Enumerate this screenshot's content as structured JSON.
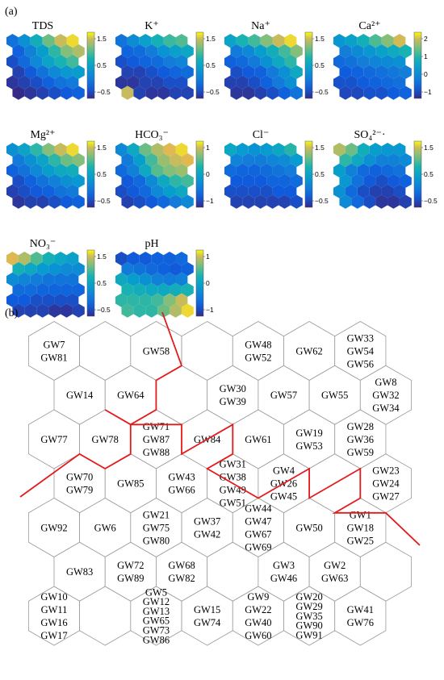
{
  "panel_a": {
    "label": "(a)",
    "maps": [
      {
        "title": "TDS",
        "ticks": [
          "1.5",
          "0.5",
          "−0.5"
        ],
        "field": [
          [
            -0.2,
            0.2,
            0.7,
            1.2,
            1.6,
            1.8
          ],
          [
            -0.4,
            0.0,
            0.4,
            0.9,
            1.3,
            1.5
          ],
          [
            -0.6,
            -0.3,
            0.1,
            0.5,
            0.8,
            1.0
          ],
          [
            -0.7,
            -0.5,
            -0.2,
            0.1,
            0.3,
            0.4
          ],
          [
            -0.8,
            -0.7,
            -0.6,
            -0.4,
            -0.2,
            -0.1
          ],
          [
            -0.9,
            -0.8,
            -0.7,
            -0.6,
            -0.5,
            -0.4
          ]
        ],
        "range": [
          -0.9,
          1.9
        ]
      },
      {
        "title": "K⁺",
        "ticks": [
          "1.5",
          "0.5",
          "−0.5"
        ],
        "field": [
          [
            -0.1,
            0.2,
            0.5,
            0.8,
            1.0,
            1.1
          ],
          [
            -0.3,
            -0.2,
            0.0,
            0.3,
            0.5,
            0.6
          ],
          [
            -0.5,
            -0.4,
            -0.3,
            -0.2,
            0.0,
            0.1
          ],
          [
            -0.6,
            -0.6,
            -0.5,
            -0.4,
            -0.3,
            -0.2
          ],
          [
            -0.7,
            -0.7,
            -0.6,
            -0.6,
            -0.5,
            -0.5
          ],
          [
            1.6,
            -0.6,
            -0.7,
            -0.7,
            -0.6,
            -0.6
          ]
        ],
        "range": [
          -0.8,
          1.9
        ]
      },
      {
        "title": "Na⁺",
        "ticks": [
          "1.5",
          "0.5",
          "−0.5"
        ],
        "field": [
          [
            0.5,
            0.8,
            1.0,
            1.3,
            1.6,
            1.8
          ],
          [
            -0.1,
            0.1,
            0.4,
            0.7,
            1.0,
            1.3
          ],
          [
            -0.4,
            -0.3,
            -0.1,
            0.2,
            0.6,
            0.9
          ],
          [
            -0.6,
            -0.5,
            -0.4,
            -0.1,
            0.2,
            0.6
          ],
          [
            -0.7,
            -0.7,
            -0.6,
            -0.4,
            -0.1,
            0.2
          ],
          [
            -0.8,
            -0.8,
            -0.7,
            -0.6,
            -0.4,
            -0.2
          ]
        ],
        "range": [
          -0.9,
          1.9
        ]
      },
      {
        "title": "Ca²⁺",
        "ticks": [
          "2",
          "1",
          "0",
          "−1"
        ],
        "field": [
          [
            0.4,
            0.6,
            0.9,
            1.3,
            1.6,
            2.0
          ],
          [
            0.0,
            0.2,
            0.4,
            0.6,
            0.8,
            1.0
          ],
          [
            -0.3,
            -0.2,
            0.0,
            0.1,
            0.2,
            0.3
          ],
          [
            -0.5,
            -0.4,
            -0.3,
            -0.2,
            -0.1,
            0.0
          ],
          [
            -0.6,
            -0.6,
            -0.5,
            -0.4,
            -0.3,
            -0.2
          ],
          [
            -0.7,
            -0.7,
            -0.6,
            -0.6,
            -0.5,
            -0.4
          ]
        ],
        "range": [
          -1.0,
          2.3
        ]
      },
      {
        "title": "Mg²⁺",
        "ticks": [
          "1.5",
          "0.5",
          "−0.5"
        ],
        "field": [
          [
            0.2,
            0.5,
            0.9,
            1.3,
            1.6,
            1.8
          ],
          [
            -0.1,
            0.2,
            0.5,
            0.9,
            1.2,
            1.3
          ],
          [
            -0.4,
            -0.2,
            0.1,
            0.4,
            0.6,
            0.7
          ],
          [
            -0.6,
            -0.4,
            -0.2,
            0.0,
            0.2,
            0.3
          ],
          [
            -0.7,
            -0.6,
            -0.5,
            -0.4,
            -0.2,
            -0.1
          ],
          [
            -0.8,
            -0.7,
            -0.7,
            -0.6,
            -0.5,
            -0.4
          ]
        ],
        "range": [
          -0.9,
          1.9
        ]
      },
      {
        "title": "HCO₃⁻",
        "ticks": [
          "1",
          "0",
          "−1"
        ],
        "field": [
          [
            -0.2,
            0.3,
            0.9,
            1.2,
            1.4,
            1.5
          ],
          [
            -0.4,
            0.1,
            0.7,
            1.1,
            1.3,
            1.4
          ],
          [
            -0.6,
            -0.3,
            0.3,
            0.8,
            1.0,
            1.1
          ],
          [
            -0.8,
            -0.6,
            -0.2,
            0.3,
            0.6,
            0.7
          ],
          [
            -0.9,
            -0.8,
            -0.6,
            -0.2,
            0.1,
            0.3
          ],
          [
            -1.0,
            -0.9,
            -0.8,
            -0.6,
            -0.4,
            -0.2
          ]
        ],
        "range": [
          -1.2,
          1.6
        ]
      },
      {
        "title": "Cl⁻",
        "ticks": [
          "1.5",
          "0.5",
          "−0.5"
        ],
        "field": [
          [
            0.6,
            0.4,
            0.3,
            0.4,
            0.6,
            0.9
          ],
          [
            0.1,
            0.0,
            0.0,
            0.1,
            0.2,
            0.4
          ],
          [
            -0.2,
            -0.3,
            -0.3,
            -0.2,
            -0.1,
            0.0
          ],
          [
            -0.4,
            -0.4,
            -0.4,
            -0.3,
            -0.3,
            -0.2
          ],
          [
            -0.5,
            -0.5,
            -0.5,
            -0.5,
            -0.4,
            -0.4
          ],
          [
            -0.6,
            -0.6,
            -0.6,
            -0.6,
            -0.6,
            -0.5
          ]
        ],
        "range": [
          -0.8,
          1.9
        ]
      },
      {
        "title": "SO₄²⁻·",
        "ticks": [
          "1.5",
          "0.5",
          "−0.5"
        ],
        "field": [
          [
            1.5,
            1.2,
            0.7,
            0.4,
            0.3,
            0.3
          ],
          [
            0.9,
            0.6,
            0.2,
            0.0,
            0.0,
            0.1
          ],
          [
            0.4,
            0.0,
            -0.3,
            -0.4,
            -0.3,
            -0.2
          ],
          [
            0.3,
            -0.2,
            -0.5,
            -0.6,
            -0.5,
            -0.4
          ],
          [
            0.2,
            -0.3,
            -0.6,
            -0.7,
            -0.7,
            -0.6
          ],
          [
            0.1,
            -0.3,
            -0.6,
            -0.8,
            -0.8,
            -0.7
          ]
        ],
        "range": [
          -0.9,
          1.9
        ]
      },
      {
        "title": "NO₃⁻",
        "ticks": [
          "1.5",
          "0.5",
          "−0.5"
        ],
        "field": [
          [
            1.7,
            1.5,
            1.1,
            0.8,
            0.6,
            0.5
          ],
          [
            0.8,
            0.6,
            0.4,
            0.3,
            0.2,
            0.2
          ],
          [
            0.2,
            0.1,
            0.0,
            -0.1,
            -0.1,
            -0.1
          ],
          [
            -0.2,
            -0.2,
            -0.3,
            -0.3,
            -0.3,
            -0.3
          ],
          [
            -0.4,
            -0.4,
            -0.5,
            -0.5,
            -0.5,
            -0.5
          ],
          [
            -0.6,
            -0.6,
            -0.6,
            -0.7,
            -0.7,
            -0.6
          ]
        ],
        "range": [
          -0.8,
          1.9
        ]
      },
      {
        "title": "pH",
        "ticks": [
          "1",
          "0",
          "−1"
        ],
        "field": [
          [
            -1.0,
            -0.9,
            -0.9,
            -0.8,
            -0.8,
            -0.7
          ],
          [
            -0.5,
            -0.6,
            -0.7,
            -0.8,
            -0.9,
            -0.8
          ],
          [
            0.2,
            0.0,
            -0.2,
            -0.4,
            -0.5,
            -0.4
          ],
          [
            0.4,
            0.3,
            0.2,
            0.2,
            0.3,
            0.4
          ],
          [
            0.5,
            0.5,
            0.5,
            0.6,
            0.9,
            1.2
          ],
          [
            0.6,
            0.5,
            0.5,
            0.8,
            1.1,
            1.4
          ]
        ],
        "range": [
          -1.3,
          1.5
        ]
      }
    ]
  },
  "panel_b": {
    "label": "(b)",
    "rows": [
      [
        [
          "GW7",
          "GW81"
        ],
        [],
        [
          "GW58"
        ],
        [],
        [
          "GW48",
          "GW52"
        ],
        [
          "GW62"
        ],
        [
          "GW33",
          "GW54",
          "GW56"
        ]
      ],
      [
        [
          "GW14"
        ],
        [
          "GW64"
        ],
        [],
        [
          "GW30",
          "GW39"
        ],
        [
          "GW57"
        ],
        [
          "GW55"
        ],
        [
          "GW8",
          "GW32",
          "GW34"
        ]
      ],
      [
        [
          "GW77"
        ],
        [
          "GW78"
        ],
        [
          "GW71",
          "GW87",
          "GW88"
        ],
        [
          "GW84"
        ],
        [
          "GW61"
        ],
        [
          "GW19",
          "GW53"
        ],
        [
          "GW28",
          "GW36",
          "GW59"
        ]
      ],
      [
        [
          "GW70",
          "GW79"
        ],
        [
          "GW85"
        ],
        [
          "GW43",
          "GW66"
        ],
        [
          "GW31",
          "GW38",
          "GW49",
          "GW51"
        ],
        [
          "GW4",
          "GW26",
          "GW45"
        ],
        [],
        [
          "GW23",
          "GW24",
          "GW27"
        ]
      ],
      [
        [
          "GW92"
        ],
        [
          "GW6"
        ],
        [
          "GW21",
          "GW75",
          "GW80"
        ],
        [
          "GW37",
          "GW42"
        ],
        [
          "GW44",
          "GW47",
          "GW67",
          "GW69"
        ],
        [
          "GW50"
        ],
        [
          "GW1",
          "GW18",
          "GW25"
        ]
      ],
      [
        [
          "GW83"
        ],
        [
          "GW72",
          "GW89"
        ],
        [
          "GW68",
          "GW82"
        ],
        [],
        [
          "GW3",
          "GW46"
        ],
        [
          "GW2",
          "GW63"
        ],
        []
      ],
      [
        [
          "GW10",
          "GW11",
          "GW16",
          "GW17"
        ],
        [],
        [
          "GW5",
          "GW12",
          "GW13",
          "GW65",
          "GW73",
          "GW86"
        ],
        [
          "GW15",
          "GW74"
        ],
        [
          "GW9",
          "GW22",
          "GW40",
          "GW60"
        ],
        [
          "GW20",
          "GW29",
          "GW35",
          "GW90",
          "GW91"
        ],
        [
          "GW41",
          "GW76"
        ]
      ]
    ]
  }
}
